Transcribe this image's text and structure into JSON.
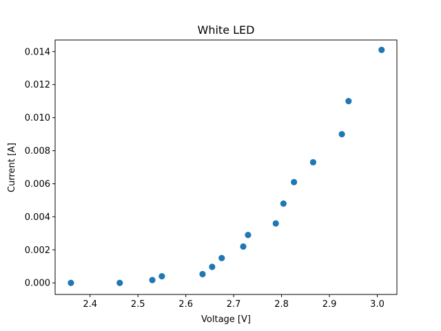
{
  "chart_data": {
    "type": "scatter",
    "title": "White LED",
    "xlabel": "Voltage [V]",
    "ylabel": "Current [A]",
    "xlim": [
      2.327,
      3.041
    ],
    "ylim": [
      -0.0007,
      0.0147
    ],
    "xticks": [
      2.4,
      2.5,
      2.6,
      2.7,
      2.8,
      2.9,
      3.0
    ],
    "xtick_labels": [
      "2.4",
      "2.5",
      "2.6",
      "2.7",
      "2.8",
      "2.9",
      "3.0"
    ],
    "yticks": [
      0.0,
      0.002,
      0.004,
      0.006,
      0.008,
      0.01,
      0.012,
      0.014
    ],
    "ytick_labels": [
      "0.000",
      "0.002",
      "0.004",
      "0.006",
      "0.008",
      "0.010",
      "0.012",
      "0.014"
    ],
    "grid": false,
    "legend": false,
    "marker_color": "#1f77b4",
    "points": [
      {
        "x": 2.36,
        "y": 0.0
      },
      {
        "x": 2.462,
        "y": 0.0
      },
      {
        "x": 2.53,
        "y": 0.00017
      },
      {
        "x": 2.55,
        "y": 0.0004
      },
      {
        "x": 2.635,
        "y": 0.00053
      },
      {
        "x": 2.655,
        "y": 0.00097
      },
      {
        "x": 2.675,
        "y": 0.0015
      },
      {
        "x": 2.72,
        "y": 0.0022
      },
      {
        "x": 2.73,
        "y": 0.0029
      },
      {
        "x": 2.788,
        "y": 0.0036
      },
      {
        "x": 2.804,
        "y": 0.0048
      },
      {
        "x": 2.826,
        "y": 0.0061
      },
      {
        "x": 2.866,
        "y": 0.0073
      },
      {
        "x": 2.926,
        "y": 0.009
      },
      {
        "x": 2.94,
        "y": 0.011
      },
      {
        "x": 3.009,
        "y": 0.0141
      }
    ]
  }
}
